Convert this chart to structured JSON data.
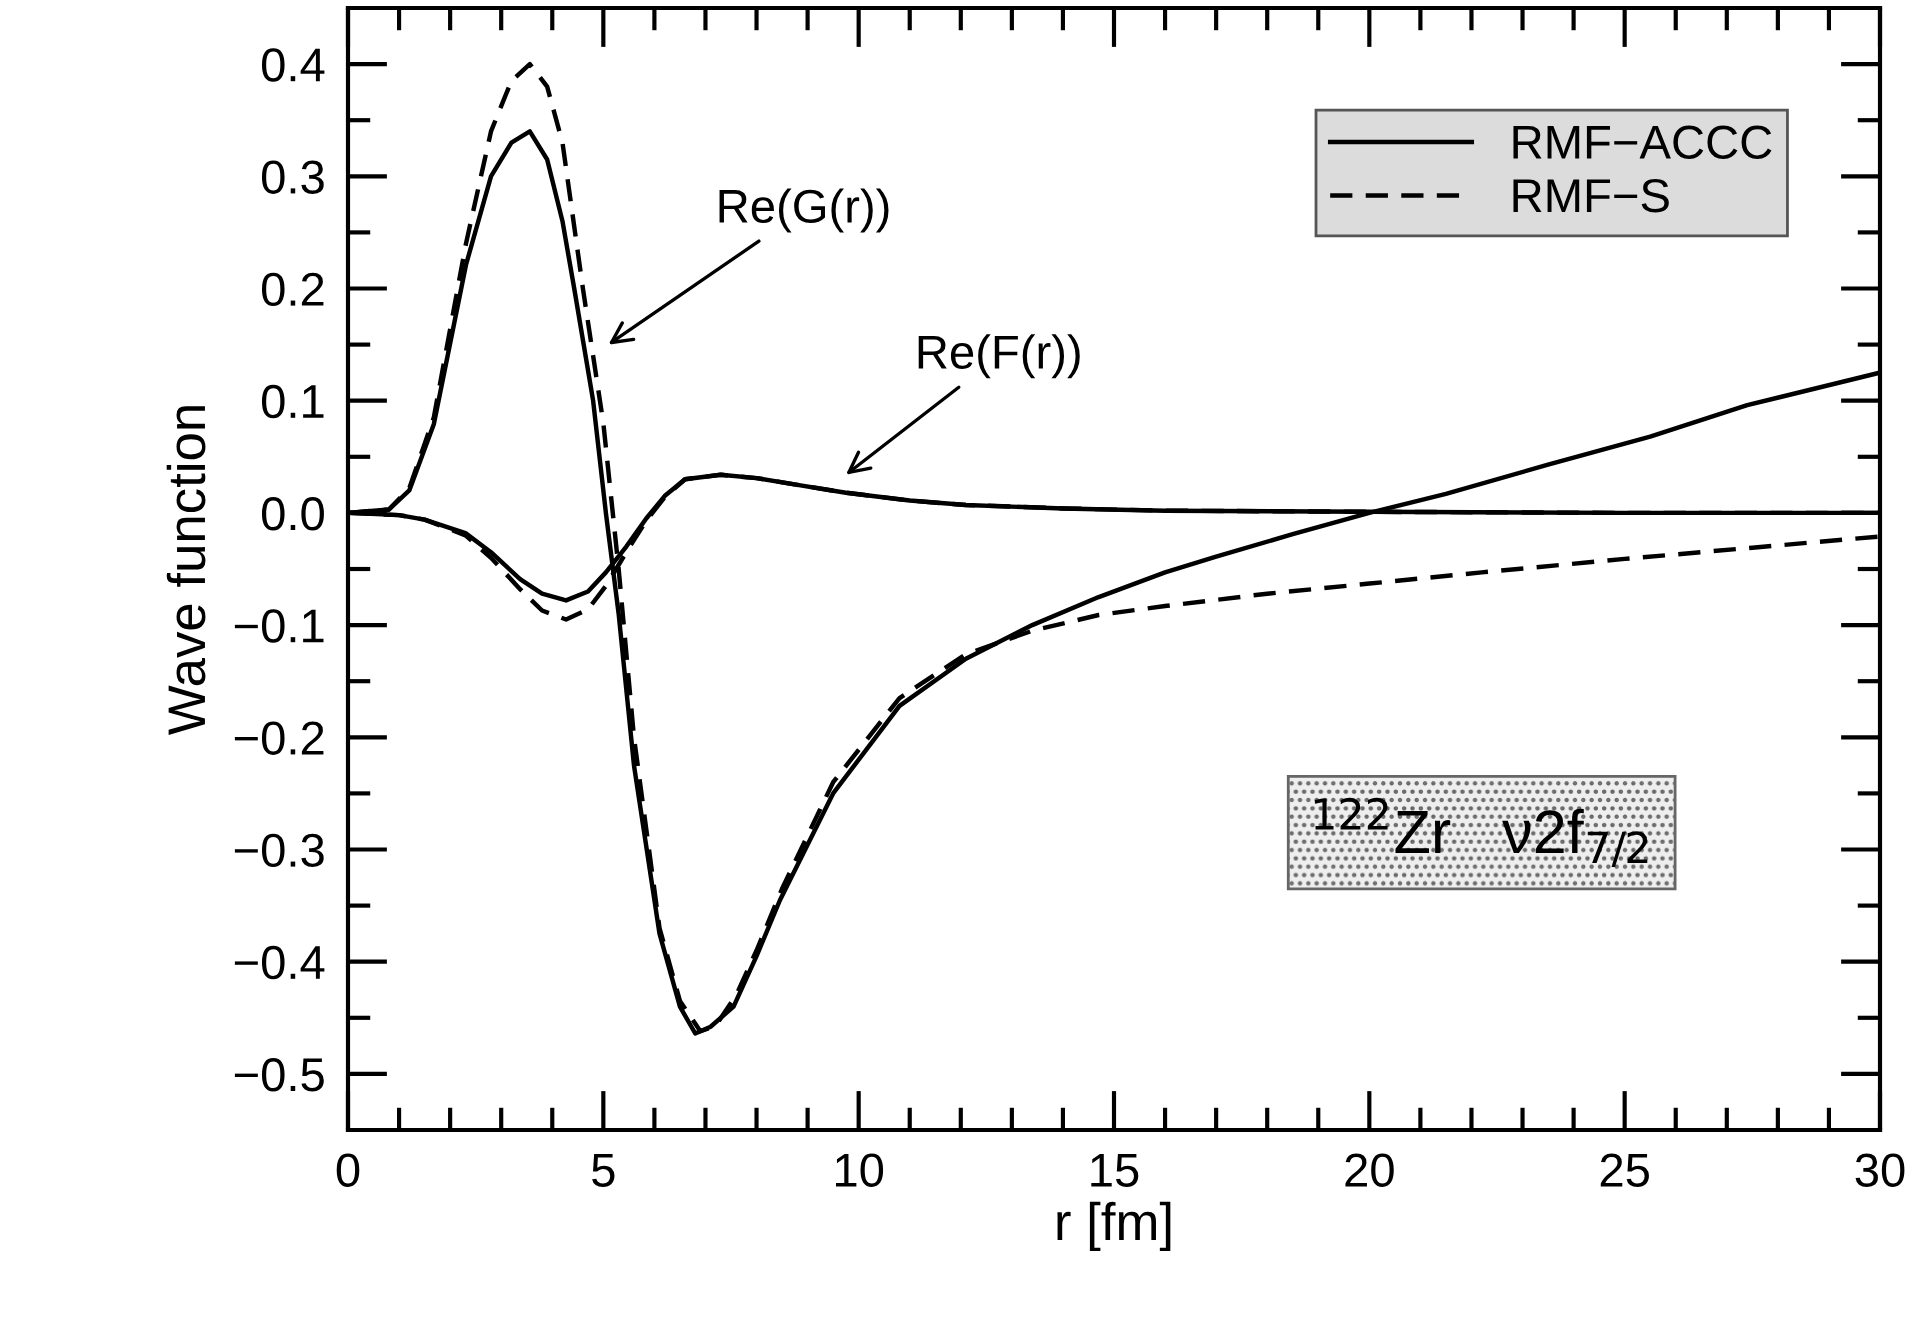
{
  "chart_data": {
    "type": "line",
    "xlabel": "r [fm]",
    "ylabel": "Wave function",
    "xlim": [
      0,
      30
    ],
    "ylim": [
      -0.55,
      0.45
    ],
    "xticks": [
      0,
      {
        "value": 1,
        "label": null
      },
      {
        "value": 2,
        "label": null
      },
      {
        "value": 3,
        "label": null
      },
      {
        "value": 4,
        "label": null
      },
      5,
      {
        "value": 6,
        "label": null
      },
      {
        "value": 7,
        "label": null
      },
      {
        "value": 8,
        "label": null
      },
      {
        "value": 9,
        "label": null
      },
      10,
      {
        "value": 11,
        "label": null
      },
      {
        "value": 12,
        "label": null
      },
      {
        "value": 13,
        "label": null
      },
      {
        "value": 14,
        "label": null
      },
      15,
      {
        "value": 16,
        "label": null
      },
      {
        "value": 17,
        "label": null
      },
      {
        "value": 18,
        "label": null
      },
      {
        "value": 19,
        "label": null
      },
      20,
      {
        "value": 21,
        "label": null
      },
      {
        "value": 22,
        "label": null
      },
      {
        "value": 23,
        "label": null
      },
      {
        "value": 24,
        "label": null
      },
      25,
      {
        "value": 26,
        "label": null
      },
      {
        "value": 27,
        "label": null
      },
      {
        "value": 28,
        "label": null
      },
      {
        "value": 29,
        "label": null
      },
      30
    ],
    "yticks": [
      {
        "value": -0.5,
        "label": "−0.5"
      },
      {
        "value": -0.45,
        "label": null
      },
      {
        "value": -0.4,
        "label": "−0.4"
      },
      {
        "value": -0.35,
        "label": null
      },
      {
        "value": -0.3,
        "label": "−0.3"
      },
      {
        "value": -0.25,
        "label": null
      },
      {
        "value": -0.2,
        "label": "−0.2"
      },
      {
        "value": -0.15,
        "label": null
      },
      {
        "value": -0.1,
        "label": "−0.1"
      },
      {
        "value": -0.05,
        "label": null
      },
      {
        "value": 0.0,
        "label": "0.0"
      },
      {
        "value": 0.05,
        "label": null
      },
      {
        "value": 0.1,
        "label": "0.1"
      },
      {
        "value": 0.15,
        "label": null
      },
      {
        "value": 0.2,
        "label": "0.2"
      },
      {
        "value": 0.25,
        "label": null
      },
      {
        "value": 0.3,
        "label": "0.3"
      },
      {
        "value": 0.35,
        "label": null
      },
      {
        "value": 0.4,
        "label": "0.4"
      }
    ],
    "grid": false,
    "legend": "top right",
    "marker": "none",
    "series": [
      {
        "name": "RMF−ACCC",
        "color": "#000000",
        "line_style": "solid",
        "x": [
          0,
          0.8,
          1.2,
          1.68,
          2.31,
          2.8,
          3.2,
          3.56,
          3.9,
          4.2,
          4.43,
          4.8,
          5.05,
          5.3,
          5.6,
          6.1,
          6.5,
          6.8,
          7.1,
          7.55,
          8.0,
          8.46,
          9.5,
          10.8,
          12.1,
          13.4,
          14.7,
          16.0,
          17.0,
          18.5,
          20.0,
          21.5,
          23.5,
          25.5,
          27.4,
          30
        ],
        "values": [
          0,
          0.003,
          0.02,
          0.079,
          0.221,
          0.3,
          0.33,
          0.34,
          0.315,
          0.26,
          0.2,
          0.1,
          0.0,
          -0.09,
          -0.225,
          -0.375,
          -0.44,
          -0.464,
          -0.458,
          -0.44,
          -0.395,
          -0.345,
          -0.25,
          -0.172,
          -0.13,
          -0.1,
          -0.075,
          -0.053,
          -0.039,
          -0.019,
          0.0,
          0.017,
          0.043,
          0.068,
          0.096,
          0.125
        ]
      },
      {
        "name": "RMF−S",
        "color": "#000000",
        "line_style": "dashed",
        "x": [
          0,
          0.8,
          1.2,
          1.68,
          2.31,
          2.8,
          3.2,
          3.56,
          3.9,
          4.2,
          4.6,
          5.0,
          5.3,
          5.6,
          6.1,
          6.5,
          6.9,
          7.2,
          7.6,
          8.0,
          8.5,
          9.5,
          10.8,
          12.1,
          13.4,
          14.7,
          16.0,
          18.0,
          20.0,
          22.2,
          25.0,
          27.5,
          30
        ],
        "values": [
          0,
          0.003,
          0.022,
          0.085,
          0.24,
          0.34,
          0.385,
          0.4,
          0.38,
          0.33,
          0.2,
          0.08,
          -0.05,
          -0.2,
          -0.37,
          -0.435,
          -0.462,
          -0.457,
          -0.43,
          -0.39,
          -0.335,
          -0.24,
          -0.165,
          -0.126,
          -0.105,
          -0.091,
          -0.083,
          -0.072,
          -0.063,
          -0.053,
          -0.041,
          -0.031,
          -0.021
        ]
      },
      {
        "color": "#000000",
        "line_style": "solid",
        "x": [
          0,
          1.0,
          1.5,
          2.3,
          2.8,
          3.37,
          3.8,
          4.27,
          4.7,
          5.05,
          5.45,
          5.84,
          6.2,
          6.6,
          7.3,
          8.0,
          8.8,
          9.75,
          11.0,
          12.1,
          14.0,
          16.0,
          20.0,
          25.0,
          30
        ],
        "values": [
          0,
          -0.002,
          -0.006,
          -0.018,
          -0.035,
          -0.059,
          -0.072,
          -0.078,
          -0.07,
          -0.053,
          -0.03,
          -0.005,
          0.015,
          0.03,
          0.034,
          0.031,
          0.025,
          0.018,
          0.011,
          0.007,
          0.004,
          0.002,
          0.001,
          0.0,
          0.0
        ]
      },
      {
        "color": "#000000",
        "line_style": "dashed",
        "x": [
          0,
          1.0,
          1.5,
          2.3,
          2.8,
          3.37,
          3.8,
          4.27,
          4.7,
          5.05,
          5.45,
          5.84,
          6.2,
          6.6,
          7.3,
          8.0,
          8.8,
          9.75,
          11.0,
          12.1,
          14.0,
          16.0,
          20.0,
          25.0,
          30
        ],
        "values": [
          0,
          -0.002,
          -0.006,
          -0.02,
          -0.04,
          -0.068,
          -0.087,
          -0.095,
          -0.086,
          -0.065,
          -0.035,
          -0.007,
          0.014,
          0.03,
          0.034,
          0.031,
          0.025,
          0.018,
          0.011,
          0.007,
          0.004,
          0.002,
          0.001,
          0.0,
          0.0
        ]
      }
    ],
    "annotations": [
      "Re(G(r))",
      "Re(F(r))",
      "$^{122}$Zr   ν2f$_{7/2}$"
    ]
  }
}
